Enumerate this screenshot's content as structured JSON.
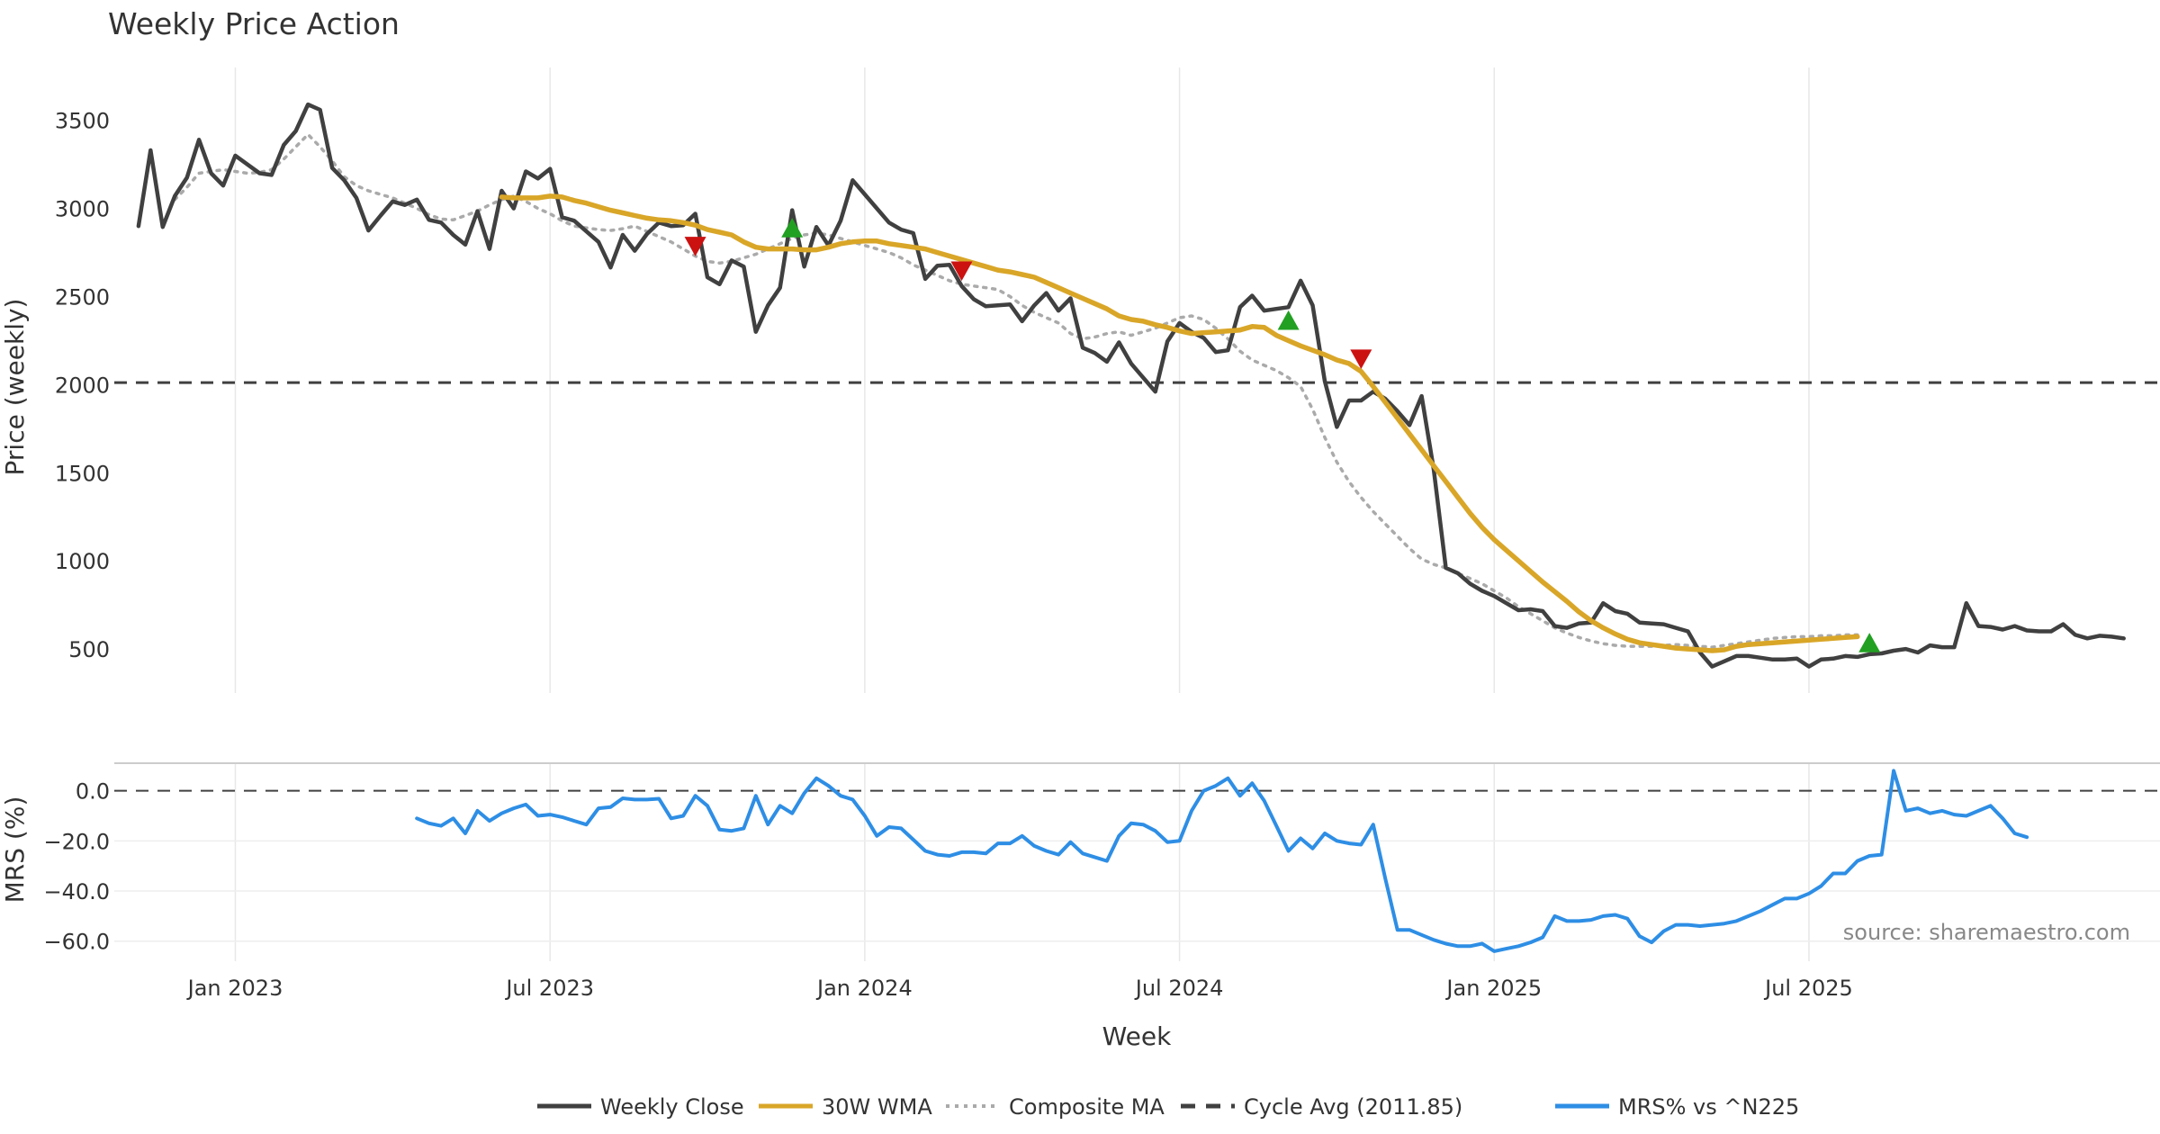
{
  "chart_data": [
    {
      "type": "line",
      "panel": "price",
      "title": "Weekly Price Action",
      "ylabel": "Price (weekly)",
      "ylim": [
        250,
        3800
      ],
      "yticks": [
        500,
        1000,
        1500,
        2000,
        2500,
        3000,
        3500
      ],
      "x_range_weeks": [
        -2,
        167
      ],
      "x_axis_start": "2022-11-07",
      "series": [
        {
          "name": "Weekly Close",
          "key": "close",
          "color": "#404040",
          "style": "solid",
          "start_week": 0,
          "values": [
            2900,
            3330,
            2895,
            3070,
            3175,
            3390,
            3200,
            3130,
            3300,
            3250,
            3200,
            3190,
            3360,
            3440,
            3590,
            3560,
            3230,
            3160,
            3060,
            2875,
            2960,
            3040,
            3020,
            3050,
            2935,
            2920,
            2850,
            2795,
            2985,
            2770,
            3100,
            3000,
            3210,
            3170,
            3225,
            2950,
            2930,
            2870,
            2810,
            2665,
            2850,
            2760,
            2855,
            2920,
            2900,
            2905,
            2970,
            2610,
            2570,
            2705,
            2670,
            2300,
            2450,
            2550,
            2990,
            2670,
            2895,
            2790,
            2930,
            3160,
            3080,
            3000,
            2920,
            2880,
            2860,
            2600,
            2675,
            2680,
            2560,
            2485,
            2445,
            2450,
            2455,
            2360,
            2450,
            2520,
            2420,
            2490,
            2210,
            2180,
            2130,
            2240,
            2120,
            2040,
            1960,
            2245,
            2350,
            2300,
            2265,
            2185,
            2195,
            2440,
            2505,
            2420,
            2430,
            2440,
            2590,
            2450,
            2020,
            1760,
            1910,
            1910,
            1960,
            1920,
            1850,
            1770,
            1935,
            1520,
            960,
            930,
            870,
            830,
            800,
            760,
            720,
            725,
            715,
            630,
            620,
            645,
            650,
            760,
            715,
            700,
            650,
            645,
            640,
            620,
            600,
            480,
            400,
            430,
            460,
            460,
            450,
            440,
            440,
            445,
            400,
            440,
            445,
            460,
            455,
            470,
            475,
            490,
            500,
            480,
            520,
            510,
            510,
            760,
            630,
            625,
            610,
            630,
            605,
            600,
            600,
            640,
            580,
            560,
            575,
            570,
            560
          ]
        },
        {
          "name": "30W WMA",
          "key": "wma",
          "color": "#D9A628",
          "style": "solid",
          "start_week": 30,
          "values": [
            3065,
            3060,
            3060,
            3060,
            3070,
            3065,
            3045,
            3030,
            3010,
            2990,
            2975,
            2960,
            2945,
            2935,
            2930,
            2920,
            2905,
            2880,
            2865,
            2850,
            2810,
            2780,
            2770,
            2770,
            2770,
            2765,
            2765,
            2780,
            2800,
            2810,
            2815,
            2815,
            2800,
            2790,
            2780,
            2770,
            2750,
            2730,
            2710,
            2690,
            2670,
            2650,
            2640,
            2625,
            2610,
            2580,
            2550,
            2520,
            2490,
            2460,
            2430,
            2390,
            2370,
            2360,
            2340,
            2325,
            2305,
            2290,
            2295,
            2300,
            2305,
            2310,
            2330,
            2325,
            2280,
            2250,
            2220,
            2195,
            2170,
            2140,
            2120,
            2075,
            1990,
            1900,
            1810,
            1720,
            1630,
            1540,
            1450,
            1360,
            1270,
            1190,
            1120,
            1060,
            1000,
            940,
            880,
            825,
            770,
            710,
            660,
            620,
            585,
            555,
            535,
            525,
            515,
            505,
            500,
            495,
            490,
            495,
            515,
            525,
            530,
            535,
            540,
            545,
            550,
            555,
            560,
            565,
            570
          ]
        },
        {
          "name": "Composite MA",
          "key": "cma",
          "color": "#AAAAAA",
          "style": "dotted",
          "start_week": 3,
          "values": [
            3050,
            3120,
            3200,
            3210,
            3220,
            3210,
            3200,
            3205,
            3220,
            3280,
            3350,
            3420,
            3350,
            3270,
            3180,
            3130,
            3100,
            3080,
            3060,
            3030,
            3000,
            2965,
            2940,
            2935,
            2960,
            2985,
            3020,
            3050,
            3070,
            3040,
            3000,
            2970,
            2930,
            2900,
            2890,
            2880,
            2875,
            2885,
            2900,
            2870,
            2840,
            2810,
            2770,
            2730,
            2700,
            2690,
            2700,
            2720,
            2740,
            2770,
            2800,
            2830,
            2850,
            2860,
            2850,
            2830,
            2810,
            2790,
            2770,
            2750,
            2720,
            2680,
            2650,
            2620,
            2590,
            2570,
            2560,
            2550,
            2540,
            2500,
            2450,
            2410,
            2380,
            2350,
            2290,
            2260,
            2270,
            2290,
            2300,
            2280,
            2300,
            2320,
            2350,
            2380,
            2390,
            2370,
            2320,
            2260,
            2190,
            2140,
            2110,
            2080,
            2040,
            1990,
            1860,
            1700,
            1560,
            1450,
            1360,
            1280,
            1210,
            1140,
            1070,
            1010,
            980,
            960,
            930,
            900,
            870,
            830,
            790,
            740,
            700,
            660,
            620,
            590,
            565,
            545,
            530,
            520,
            515,
            515,
            515,
            520,
            525,
            520,
            515,
            510,
            520,
            530,
            540,
            550,
            560,
            565,
            570,
            570,
            575,
            575,
            580,
            580
          ]
        },
        {
          "name": "Cycle Avg (2011.85)",
          "key": "cycle",
          "color": "#404040",
          "style": "dashed",
          "constant": 2011.85
        }
      ],
      "markers": [
        {
          "type": "sell",
          "week": 46,
          "value": 2790,
          "color": "#CC1111"
        },
        {
          "type": "buy",
          "week": 54,
          "value": 2885,
          "color": "#22A022"
        },
        {
          "type": "sell",
          "week": 68,
          "value": 2650,
          "color": "#CC1111"
        },
        {
          "type": "buy",
          "week": 95,
          "value": 2360,
          "color": "#22A022"
        },
        {
          "type": "sell",
          "week": 101,
          "value": 2150,
          "color": "#CC1111"
        },
        {
          "type": "buy",
          "week": 143,
          "value": 530,
          "color": "#22A022"
        }
      ]
    },
    {
      "type": "line",
      "panel": "mrs",
      "xlabel": "Week",
      "ylabel": "MRS (%)",
      "ylim": [
        -68,
        11
      ],
      "yticks": [
        0,
        -20,
        -40,
        -60
      ],
      "ytick_labels": [
        "0.0",
        "−20.0",
        "−40.0",
        "−60.0"
      ],
      "xticks": [
        {
          "label": "Jan 2023",
          "week": 8
        },
        {
          "label": "Jul 2023",
          "week": 34
        },
        {
          "label": "Jan 2024",
          "week": 60
        },
        {
          "label": "Jul 2024",
          "week": 86
        },
        {
          "label": "Jan 2025",
          "week": 112
        },
        {
          "label": "Jul 2025",
          "week": 138
        }
      ],
      "series": [
        {
          "name": "MRS% vs ^N225",
          "key": "mrs",
          "color": "#2E8EE5",
          "style": "solid",
          "start_week": 23,
          "values": [
            -11,
            -13,
            -14,
            -11,
            -17,
            -8,
            -12,
            -9,
            -7,
            -5.5,
            -10,
            -9.5,
            -10.5,
            -12,
            -13.5,
            -7,
            -6.5,
            -3,
            -3.5,
            -3.5,
            -3.2,
            -11,
            -10,
            -2,
            -6,
            -15.5,
            -16,
            -15,
            -2,
            -13.5,
            -6,
            -9,
            -1,
            5,
            2,
            -2,
            -3.5,
            -10,
            -18,
            -14.5,
            -15,
            -19.5,
            -24,
            -25.5,
            -26,
            -24.5,
            -24.5,
            -25,
            -21,
            -21,
            -18,
            -22,
            -24,
            -25.5,
            -20.5,
            -25,
            -26.5,
            -28,
            -18,
            -13,
            -13.5,
            -16,
            -20.5,
            -20,
            -8,
            0,
            2,
            5,
            -2,
            3,
            -4,
            -14,
            -24,
            -19,
            -23,
            -17,
            -20,
            -21,
            -21.5,
            -13.5,
            -35,
            -55.5,
            -55.5,
            -57.5,
            -59.5,
            -61,
            -62,
            -62,
            -61,
            -64,
            -63,
            -62,
            -60.5,
            -58.5,
            -50,
            -52,
            -52,
            -51.5,
            -50,
            -49.5,
            -51,
            -58,
            -60.5,
            -56,
            -53.5,
            -53.5,
            -54,
            -53.5,
            -53,
            -52,
            -50,
            -48,
            -45.5,
            -43,
            -43,
            -41,
            -38,
            -33,
            -33,
            -28,
            -26,
            -25.5,
            8,
            -8,
            -7,
            -9,
            -8,
            -9.5,
            -10,
            -8,
            -6,
            -11,
            -17,
            -18.5
          ]
        },
        {
          "name": "zero-line",
          "key": "zero",
          "color": "#404040",
          "style": "dashed",
          "constant": 0
        }
      ]
    }
  ],
  "legend": [
    {
      "label": "Weekly Close",
      "color": "#404040",
      "style": "solid"
    },
    {
      "label": "30W WMA",
      "color": "#D9A628",
      "style": "solid"
    },
    {
      "label": "Composite MA",
      "color": "#AAAAAA",
      "style": "dotted"
    },
    {
      "label": "Cycle Avg (2011.85)",
      "color": "#404040",
      "style": "dashed"
    },
    {
      "label": "MRS% vs ^N225",
      "color": "#2E8EE5",
      "style": "solid"
    }
  ],
  "source_text": "source: sharemaestro.com"
}
